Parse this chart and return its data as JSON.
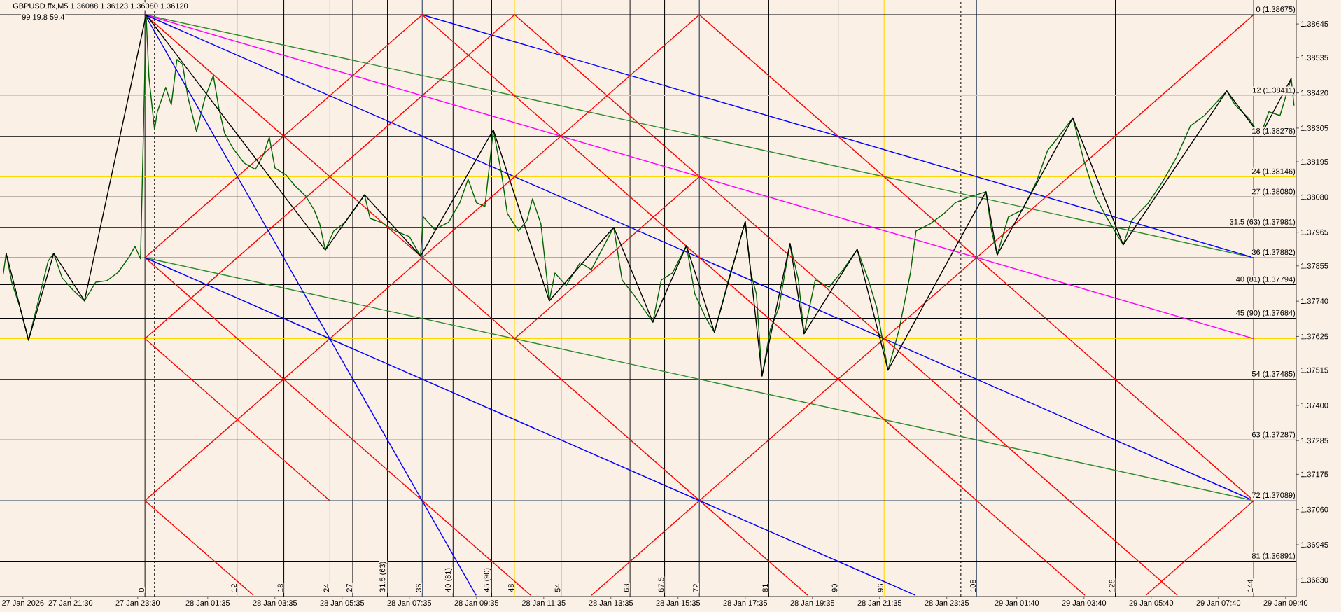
{
  "chart_data": {
    "type": "line",
    "title": "GBPUSD.ffx,M5 1.36088 1.36123 1.36080 1.36120",
    "subtitle": "99 19.8 59.4",
    "xlim": [
      "2026-01-27T19:24",
      "2026-01-29T09:59"
    ],
    "ylim": [
      1.36776,
      1.38723
    ],
    "xticks": [
      {
        "value": "2026-01-27T20:05",
        "label": "27 Jan 2026"
      },
      {
        "value": "2026-01-27T21:30",
        "label": "27 Jan 21:30"
      },
      {
        "value": "2026-01-27T23:30",
        "label": "27 Jan 23:30"
      },
      {
        "value": "2026-01-28T01:35",
        "label": "28 Jan 01:35"
      },
      {
        "value": "2026-01-28T03:35",
        "label": "28 Jan 03:35"
      },
      {
        "value": "2026-01-28T05:35",
        "label": "28 Jan 05:35"
      },
      {
        "value": "2026-01-28T07:35",
        "label": "28 Jan 07:35"
      },
      {
        "value": "2026-01-28T09:35",
        "label": "28 Jan 09:35"
      },
      {
        "value": "2026-01-28T11:35",
        "label": "28 Jan 11:35"
      },
      {
        "value": "2026-01-28T13:35",
        "label": "28 Jan 13:35"
      },
      {
        "value": "2026-01-28T15:35",
        "label": "28 Jan 15:35"
      },
      {
        "value": "2026-01-28T17:35",
        "label": "28 Jan 17:35"
      },
      {
        "value": "2026-01-28T19:35",
        "label": "28 Jan 19:35"
      },
      {
        "value": "2026-01-28T21:35",
        "label": "28 Jan 21:35"
      },
      {
        "value": "2026-01-28T23:35",
        "label": "28 Jan 23:35"
      },
      {
        "value": "2026-01-29T01:40",
        "label": "29 Jan 01:40"
      },
      {
        "value": "2026-01-29T03:40",
        "label": "29 Jan 03:40"
      },
      {
        "value": "2026-01-29T05:40",
        "label": "29 Jan 05:40"
      },
      {
        "value": "2026-01-29T07:40",
        "label": "29 Jan 07:40"
      },
      {
        "value": "2026-01-29T09:40",
        "label": "29 Jan 09:40"
      }
    ],
    "yticks": [
      1.38645,
      1.38535,
      {
        "value": 1.3842,
        "label": "1.38420"
      },
      1.38305,
      1.38195,
      {
        "value": 1.3808,
        "label": "1.38080"
      },
      1.37965,
      1.37855,
      {
        "value": 1.3774,
        "label": "1.37740"
      },
      1.37625,
      1.37515,
      {
        "value": 1.374,
        "label": "1.37400"
      },
      1.37285,
      1.37175,
      {
        "value": 1.3706,
        "label": "1.37060"
      },
      1.36945,
      {
        "value": 1.3683,
        "label": "1.36830"
      }
    ],
    "ref_lines": [
      {
        "axis": "x",
        "value": "2026-01-28T00:00",
        "color": "#000000",
        "line_style": "dashed"
      },
      {
        "axis": "x",
        "value": "2026-01-29T00:00",
        "color": "#000000",
        "line_style": "dashed"
      },
      {
        "axis": "x",
        "value": "2026-01-27T23:43",
        "label": "0",
        "color": "#000000"
      },
      {
        "axis": "x",
        "value": "2026-01-28T02:28",
        "label": "12",
        "color": "#ffd700"
      },
      {
        "axis": "x",
        "value": "2026-01-28T03:51",
        "label": "18",
        "color": "#000000"
      },
      {
        "axis": "x",
        "value": "2026-01-28T05:13",
        "label": "24",
        "color": "#ffd700"
      },
      {
        "axis": "x",
        "value": "2026-01-28T05:54",
        "label": "27",
        "color": "#000000"
      },
      {
        "axis": "x",
        "value": "2026-01-28T06:56",
        "label": "31.5 (63)",
        "color": "#000000"
      },
      {
        "axis": "x",
        "value": "2026-01-28T07:58",
        "label": "36",
        "color": "#203a5a"
      },
      {
        "axis": "x",
        "value": "2026-01-28T08:53",
        "label": "40 (81)",
        "color": "#000000"
      },
      {
        "axis": "x",
        "value": "2026-01-28T10:02",
        "label": "45 (90)",
        "color": "#000000"
      },
      {
        "axis": "x",
        "value": "2026-01-28T10:43",
        "label": "48",
        "color": "#ffd700"
      },
      {
        "axis": "x",
        "value": "2026-01-28T12:06",
        "label": "54",
        "color": "#000000"
      },
      {
        "axis": "x",
        "value": "2026-01-28T14:09",
        "label": "63",
        "color": "#000000"
      },
      {
        "axis": "x",
        "value": "2026-01-28T15:11",
        "label": "67.5",
        "color": "#000000"
      },
      {
        "axis": "x",
        "value": "2026-01-28T16:13",
        "label": "72",
        "color": "#203a5a"
      },
      {
        "axis": "x",
        "value": "2026-01-28T18:17",
        "label": "81",
        "color": "#000000"
      },
      {
        "axis": "x",
        "value": "2026-01-28T20:21",
        "label": "90",
        "color": "#000000"
      },
      {
        "axis": "x",
        "value": "2026-01-28T21:43",
        "label": "96",
        "color": "#ffd700"
      },
      {
        "axis": "x",
        "value": "2026-01-29T00:28",
        "label": "108",
        "color": "#203a5a"
      },
      {
        "axis": "x",
        "value": "2026-01-29T04:36",
        "label": "126",
        "color": "#000000"
      },
      {
        "axis": "x",
        "value": "2026-01-29T08:43",
        "label": "144",
        "color": "#000000"
      },
      {
        "axis": "y",
        "value": 1.38675,
        "label": "0 (1.38675)",
        "color": "#000000"
      },
      {
        "axis": "y",
        "value": 1.38411,
        "label": "12 (1.38411)",
        "color": "#ffd700"
      },
      {
        "axis": "y",
        "value": 1.38278,
        "label": "18 (1.38278)",
        "color": "#000000"
      },
      {
        "axis": "y",
        "value": 1.38146,
        "label": "24 (1.38146)",
        "color": "#ffd700"
      },
      {
        "axis": "y",
        "value": 1.3808,
        "label": "27 (1.38080)",
        "color": "#000000"
      },
      {
        "axis": "y",
        "value": 1.37981,
        "label": "31.5 (63) (1.37981)",
        "color": "#000000"
      },
      {
        "axis": "y",
        "value": 1.37882,
        "label": "36 (1.37882)",
        "color": "#203a5a"
      },
      {
        "axis": "y",
        "value": 1.37794,
        "label": "40 (81) (1.37794)",
        "color": "#000000"
      },
      {
        "axis": "y",
        "value": 1.37684,
        "label": "45 (90) (1.37684)",
        "color": "#000000"
      },
      {
        "axis": "y",
        "value": 1.37618,
        "color": "#ffd700"
      },
      {
        "axis": "y",
        "value": 1.37485,
        "label": "54 (1.37485)",
        "color": "#000000"
      },
      {
        "axis": "y",
        "value": 1.37287,
        "label": "63 (1.37287)",
        "color": "#000000"
      },
      {
        "axis": "y",
        "value": 1.37089,
        "label": "72 (1.37089)",
        "color": "#203a5a"
      },
      {
        "axis": "y",
        "value": 1.36891,
        "label": "81 (1.36891)",
        "color": "#000000"
      }
    ],
    "series": [
      {
        "color": "#2e8b2e",
        "x": [
          "2026-01-27T23:43",
          "2026-01-29T08:43"
        ],
        "values": [
          1.38675,
          1.37882
        ]
      },
      {
        "color": "#ff00ff",
        "x": [
          "2026-01-27T23:43",
          "2026-01-29T08:43"
        ],
        "values": [
          1.38675,
          1.37618
        ]
      },
      {
        "color": "#0000ff",
        "x": [
          "2026-01-27T23:43",
          "2026-01-29T08:43"
        ],
        "values": [
          1.38675,
          1.37089
        ]
      },
      {
        "color": "#0000ff",
        "x": [
          "2026-01-28T07:58",
          "2026-01-29T08:43"
        ],
        "values": [
          1.38675,
          1.37882
        ]
      },
      {
        "color": "#2e8b2e",
        "x": [
          "2026-01-27T23:43",
          "2026-01-29T08:43"
        ],
        "values": [
          1.37882,
          1.37089
        ]
      },
      {
        "color": "#ff0000",
        "x": [
          "2026-01-27T23:43",
          "2026-01-28T19:26"
        ],
        "values": [
          1.38675,
          1.36781
        ]
      },
      {
        "color": "#ff0000",
        "x": [
          "2026-01-28T07:58",
          "2026-01-29T03:41"
        ],
        "values": [
          1.38675,
          1.36781
        ]
      },
      {
        "color": "#ff0000",
        "x": [
          "2026-01-28T10:43",
          "2026-01-29T06:26"
        ],
        "values": [
          1.38675,
          1.36781
        ]
      },
      {
        "color": "#ff0000",
        "x": [
          "2026-01-28T16:13",
          "2026-01-29T08:43"
        ],
        "values": [
          1.38675,
          1.37089
        ]
      },
      {
        "color": "#ff0000",
        "x": [
          "2026-01-27T23:43",
          "2026-01-28T11:11"
        ],
        "values": [
          1.37882,
          1.36781
        ]
      },
      {
        "color": "#ff0000",
        "x": [
          "2026-01-27T23:43",
          "2026-01-28T05:13"
        ],
        "values": [
          1.37618,
          1.37089
        ]
      },
      {
        "color": "#ff0000",
        "x": [
          "2026-01-27T23:43",
          "2026-01-28T02:56"
        ],
        "values": [
          1.37089,
          1.36781
        ]
      },
      {
        "color": "#ff0000",
        "x": [
          "2026-01-27T23:43",
          "2026-01-28T07:58"
        ],
        "values": [
          1.37882,
          1.38675
        ]
      },
      {
        "color": "#ff0000",
        "x": [
          "2026-01-27T23:43",
          "2026-01-28T10:43"
        ],
        "values": [
          1.37618,
          1.38675
        ]
      },
      {
        "color": "#ff0000",
        "x": [
          "2026-01-27T23:43",
          "2026-01-28T16:13"
        ],
        "values": [
          1.37089,
          1.38675
        ]
      },
      {
        "color": "#ff0000",
        "x": [
          "2026-01-28T13:01",
          "2026-01-29T08:43"
        ],
        "values": [
          1.36781,
          1.38675
        ]
      },
      {
        "color": "#ff0000",
        "x": [
          "2026-01-29T05:31",
          "2026-01-29T08:43"
        ],
        "values": [
          1.36781,
          1.37089
        ]
      },
      {
        "color": "#ff0000",
        "x": [
          "2026-01-28T10:43",
          "2026-01-28T16:13"
        ],
        "values": [
          1.37618,
          1.38146
        ]
      },
      {
        "color": "#0000ff",
        "x": [
          "2026-01-27T23:43",
          "2026-01-28T09:34"
        ],
        "values": [
          1.38675,
          1.36781
        ]
      },
      {
        "color": "#0000ff",
        "x": [
          "2026-01-27T23:43",
          "2026-01-28T22:38"
        ],
        "values": [
          1.37882,
          1.36781
        ]
      },
      {
        "color": "#006400",
        "x": [
          "2026-01-27T19:30",
          "2026-01-27T19:35",
          "2026-01-27T19:45",
          "2026-01-27T20:00",
          "2026-01-27T20:15",
          "2026-01-27T20:35",
          "2026-01-27T20:50",
          "2026-01-27T21:00",
          "2026-01-27T21:15",
          "2026-01-27T21:35",
          "2026-01-27T21:55",
          "2026-01-27T22:15",
          "2026-01-27T22:35",
          "2026-01-27T22:55",
          "2026-01-27T23:15",
          "2026-01-27T23:25",
          "2026-01-27T23:35",
          "2026-01-27T23:45",
          "2026-01-27T23:50",
          "2026-01-28T00:00",
          "2026-01-28T00:05",
          "2026-01-28T00:20",
          "2026-01-28T00:30",
          "2026-01-28T00:40",
          "2026-01-28T00:50",
          "2026-01-28T01:00",
          "2026-01-28T01:15",
          "2026-01-28T01:30",
          "2026-01-28T01:45",
          "2026-01-28T01:55",
          "2026-01-28T02:05",
          "2026-01-28T02:20",
          "2026-01-28T02:40",
          "2026-01-28T03:00",
          "2026-01-28T03:15",
          "2026-01-28T03:25",
          "2026-01-28T03:35",
          "2026-01-28T03:55",
          "2026-01-28T04:10",
          "2026-01-28T04:30",
          "2026-01-28T04:45",
          "2026-01-28T04:55",
          "2026-01-28T05:05",
          "2026-01-28T05:20",
          "2026-01-28T05:40",
          "2026-01-28T06:00",
          "2026-01-28T06:15",
          "2026-01-28T06:25",
          "2026-01-28T06:45",
          "2026-01-28T07:10",
          "2026-01-28T07:35",
          "2026-01-28T07:55",
          "2026-01-28T08:00",
          "2026-01-28T08:20",
          "2026-01-28T08:45",
          "2026-01-28T09:05",
          "2026-01-28T09:20",
          "2026-01-28T09:35",
          "2026-01-28T09:50",
          "2026-01-28T10:05",
          "2026-01-28T10:20",
          "2026-01-28T10:30",
          "2026-01-28T10:50",
          "2026-01-28T11:05",
          "2026-01-28T11:15",
          "2026-01-28T11:30",
          "2026-01-28T11:45",
          "2026-01-28T11:55",
          "2026-01-28T12:15",
          "2026-01-28T12:40",
          "2026-01-28T13:00",
          "2026-01-28T13:20",
          "2026-01-28T13:40",
          "2026-01-28T13:55",
          "2026-01-28T14:15",
          "2026-01-28T14:50",
          "2026-01-28T15:05",
          "2026-01-28T15:25",
          "2026-01-28T15:50",
          "2026-01-28T16:05",
          "2026-01-28T16:25",
          "2026-01-28T16:40",
          "2026-01-28T17:05",
          "2026-01-28T17:20",
          "2026-01-28T17:35",
          "2026-01-28T17:45",
          "2026-01-28T17:55",
          "2026-01-28T18:05",
          "2026-01-28T18:20",
          "2026-01-28T18:35",
          "2026-01-28T18:55",
          "2026-01-28T19:10",
          "2026-01-28T19:20",
          "2026-01-28T19:40",
          "2026-01-28T20:05",
          "2026-01-28T20:30",
          "2026-01-28T20:55",
          "2026-01-28T21:15",
          "2026-01-28T21:30",
          "2026-01-28T21:50",
          "2026-01-28T22:10",
          "2026-01-28T22:30",
          "2026-01-28T22:40",
          "2026-01-28T23:05",
          "2026-01-28T23:30",
          "2026-01-28T23:50",
          "2026-01-29T00:10",
          "2026-01-29T00:45",
          "2026-01-29T00:55",
          "2026-01-29T01:05",
          "2026-01-29T01:25",
          "2026-01-29T01:50",
          "2026-01-29T02:15",
          "2026-01-29T02:35",
          "2026-01-29T02:50",
          "2026-01-29T03:20",
          "2026-01-29T03:40",
          "2026-01-29T04:00",
          "2026-01-29T04:20",
          "2026-01-29T04:50",
          "2026-01-29T05:05",
          "2026-01-29T05:35",
          "2026-01-29T06:00",
          "2026-01-29T06:25",
          "2026-01-29T06:50",
          "2026-01-29T07:15",
          "2026-01-29T07:55",
          "2026-01-29T08:10",
          "2026-01-29T08:35",
          "2026-01-29T08:55",
          "2026-01-29T09:10",
          "2026-01-29T09:30",
          "2026-01-29T09:50",
          "2026-01-29T09:55"
        ],
        "values": [
          1.3783,
          1.37896,
          1.37802,
          1.37718,
          1.37613,
          1.37759,
          1.37871,
          1.37896,
          1.37816,
          1.37775,
          1.37741,
          1.37802,
          1.37807,
          1.37834,
          1.37885,
          1.37919,
          1.37878,
          1.38675,
          1.38472,
          1.383,
          1.38358,
          1.38438,
          1.38381,
          1.38529,
          1.38513,
          1.38403,
          1.38294,
          1.38403,
          1.38476,
          1.38369,
          1.38289,
          1.38239,
          1.38191,
          1.3817,
          1.3822,
          1.38275,
          1.38175,
          1.38152,
          1.38118,
          1.38083,
          1.38038,
          1.37992,
          1.37907,
          1.37969,
          1.37997,
          1.38047,
          1.38087,
          1.3801,
          1.37997,
          1.37969,
          1.37951,
          1.37887,
          1.38015,
          1.37974,
          1.37997,
          1.38061,
          1.38138,
          1.38061,
          1.38049,
          1.38299,
          1.38152,
          1.38026,
          1.37969,
          1.38003,
          1.38074,
          1.37992,
          1.37741,
          1.37832,
          1.37791,
          1.37866,
          1.37843,
          1.37912,
          1.37981,
          1.37809,
          1.37763,
          1.37672,
          1.37809,
          1.37832,
          1.37921,
          1.37763,
          1.37684,
          1.37639,
          1.37809,
          1.37901,
          1.38,
          1.37832,
          1.37763,
          1.37496,
          1.37649,
          1.37718,
          1.37928,
          1.37809,
          1.37634,
          1.37809,
          1.37786,
          1.37843,
          1.37909,
          1.37809,
          1.37718,
          1.37515,
          1.37649,
          1.37832,
          1.37969,
          1.37992,
          1.38026,
          1.38061,
          1.38077,
          1.38097,
          1.37969,
          1.37891,
          1.38015,
          1.38038,
          1.38129,
          1.38232,
          1.38266,
          1.38338,
          1.38198,
          1.38083,
          1.38015,
          1.37924,
          1.38003,
          1.38061,
          1.38129,
          1.38209,
          1.38312,
          1.38346,
          1.38426,
          1.3838,
          1.38335,
          1.38279,
          1.38358,
          1.38346,
          1.38467,
          1.3838
        ]
      },
      {
        "color": "#000000",
        "x": [
          "2026-01-27T19:35",
          "2026-01-27T20:15",
          "2026-01-27T21:00",
          "2026-01-27T21:55",
          "2026-01-27T23:45",
          "2026-01-28T05:05",
          "2026-01-28T06:15",
          "2026-01-28T07:55",
          "2026-01-28T10:05",
          "2026-01-28T11:45",
          "2026-01-28T13:40",
          "2026-01-28T14:50",
          "2026-01-28T15:50",
          "2026-01-28T16:40",
          "2026-01-28T17:35",
          "2026-01-28T18:05",
          "2026-01-28T18:55",
          "2026-01-28T19:20",
          "2026-01-28T20:55",
          "2026-01-28T21:50",
          "2026-01-29T00:45",
          "2026-01-29T01:05",
          "2026-01-29T03:20",
          "2026-01-29T04:50",
          "2026-01-29T07:55",
          "2026-01-29T08:55",
          "2026-01-29T09:50"
        ],
        "values": [
          1.37896,
          1.37613,
          1.37896,
          1.37741,
          1.38675,
          1.37907,
          1.38087,
          1.37887,
          1.38299,
          1.37741,
          1.37981,
          1.37672,
          1.37921,
          1.37639,
          1.38,
          1.37496,
          1.37928,
          1.37634,
          1.37909,
          1.37515,
          1.38097,
          1.37891,
          1.38338,
          1.37924,
          1.38426,
          1.38279,
          1.38467
        ]
      }
    ]
  }
}
